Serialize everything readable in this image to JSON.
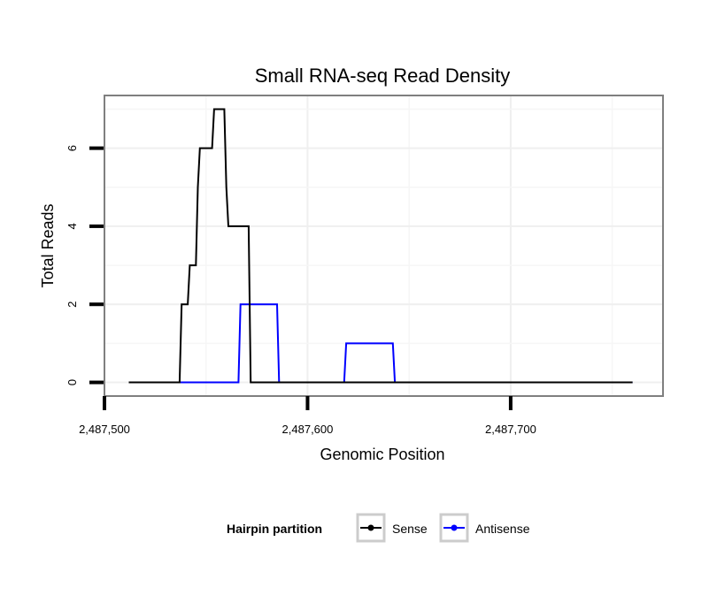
{
  "chart_data": {
    "type": "line",
    "title": "Small RNA-seq Read Density",
    "xlabel": "Genomic Position",
    "ylabel": "Total Reads",
    "xlim": [
      2487500,
      2487775
    ],
    "ylim": [
      -0.35,
      7.35
    ],
    "x_ticks": [
      {
        "value": 2487500,
        "label": "2,487,500"
      },
      {
        "value": 2487600,
        "label": "2,487,600"
      },
      {
        "value": 2487700,
        "label": "2,487,700"
      }
    ],
    "y_ticks": [
      {
        "value": 0,
        "label": "0"
      },
      {
        "value": 2,
        "label": "2"
      },
      {
        "value": 4,
        "label": "4"
      },
      {
        "value": 6,
        "label": "6"
      }
    ],
    "grid": true,
    "legend": {
      "title": "Hairpin partition",
      "position": "bottom",
      "entries": [
        {
          "name": "Sense",
          "color": "#000000"
        },
        {
          "name": "Antisense",
          "color": "#0000ff"
        }
      ]
    },
    "series": [
      {
        "name": "Sense",
        "color": "#000000",
        "x": [
          2487512,
          2487537,
          2487538,
          2487540,
          2487541,
          2487542,
          2487544,
          2487545,
          2487546,
          2487547,
          2487548,
          2487553,
          2487554,
          2487555,
          2487559,
          2487560,
          2487561,
          2487562,
          2487568,
          2487571,
          2487572,
          2487760
        ],
        "y": [
          0,
          0,
          2,
          2,
          2,
          3,
          3,
          3,
          5,
          6,
          6,
          6,
          7,
          7,
          7,
          5,
          4,
          4,
          4,
          4,
          0,
          0
        ]
      },
      {
        "name": "Antisense",
        "color": "#0000ff",
        "x": [
          2487512,
          2487566,
          2487567,
          2487585,
          2487586,
          2487618,
          2487619,
          2487642,
          2487643,
          2487760
        ],
        "y": [
          0,
          0,
          2,
          2,
          0,
          0,
          1,
          1,
          0,
          0
        ]
      }
    ]
  }
}
